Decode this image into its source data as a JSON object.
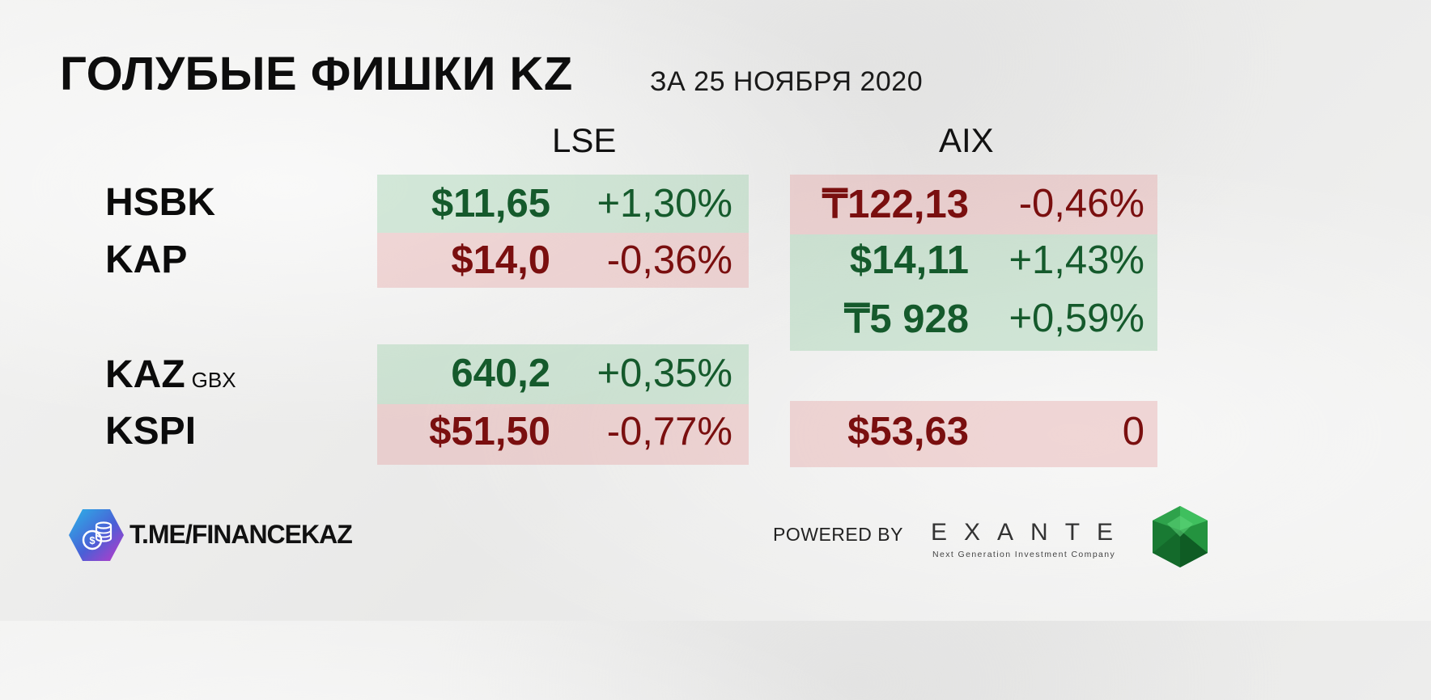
{
  "header": {
    "title": "ГОЛУБЫЕ ФИШКИ KZ",
    "subtitle": "ЗА 25 НОЯБРЯ 2020"
  },
  "exchanges": {
    "lse": "LSE",
    "aix": "AIX"
  },
  "tickers": {
    "hsbk": "HSBK",
    "kap": "KAP",
    "kaz": "KAZ",
    "kaz_unit": "GBX",
    "kspi": "KSPI"
  },
  "lse": {
    "hsbk": {
      "price": "$11,65",
      "change": "+1,30%",
      "direction": "up"
    },
    "kap": {
      "price": "$14,0",
      "change": "-0,36%",
      "direction": "down"
    },
    "kaz": {
      "price": "640,2",
      "change": "+0,35%",
      "direction": "up"
    },
    "kspi": {
      "price": "$51,50",
      "change": "-0,77%",
      "direction": "down"
    }
  },
  "aix": {
    "hsbk": {
      "price": "₸122,13",
      "change": "-0,46%",
      "direction": "down"
    },
    "kap": {
      "price": "$14,11",
      "change": "+1,43%",
      "direction": "up"
    },
    "extra": {
      "price": "₸5 928",
      "change": "+0,59%",
      "direction": "up"
    },
    "kspi": {
      "price": "$53,63",
      "change": "0",
      "direction": "down"
    }
  },
  "footer": {
    "channel": "T.ME/FINANCEKAZ",
    "powered_by": "POWERED BY",
    "brand": "EXANTE",
    "brand_tagline": "Next Generation Investment Company"
  },
  "colors": {
    "positive": "#155a2c",
    "negative": "#7a0f0f",
    "positive_bg": "#cfe3d3",
    "negative_bg": "#ecd3d1"
  },
  "icons": {
    "channel_logo": "coins-hexagon-icon",
    "brand_logo": "emerald-gem-icon"
  }
}
